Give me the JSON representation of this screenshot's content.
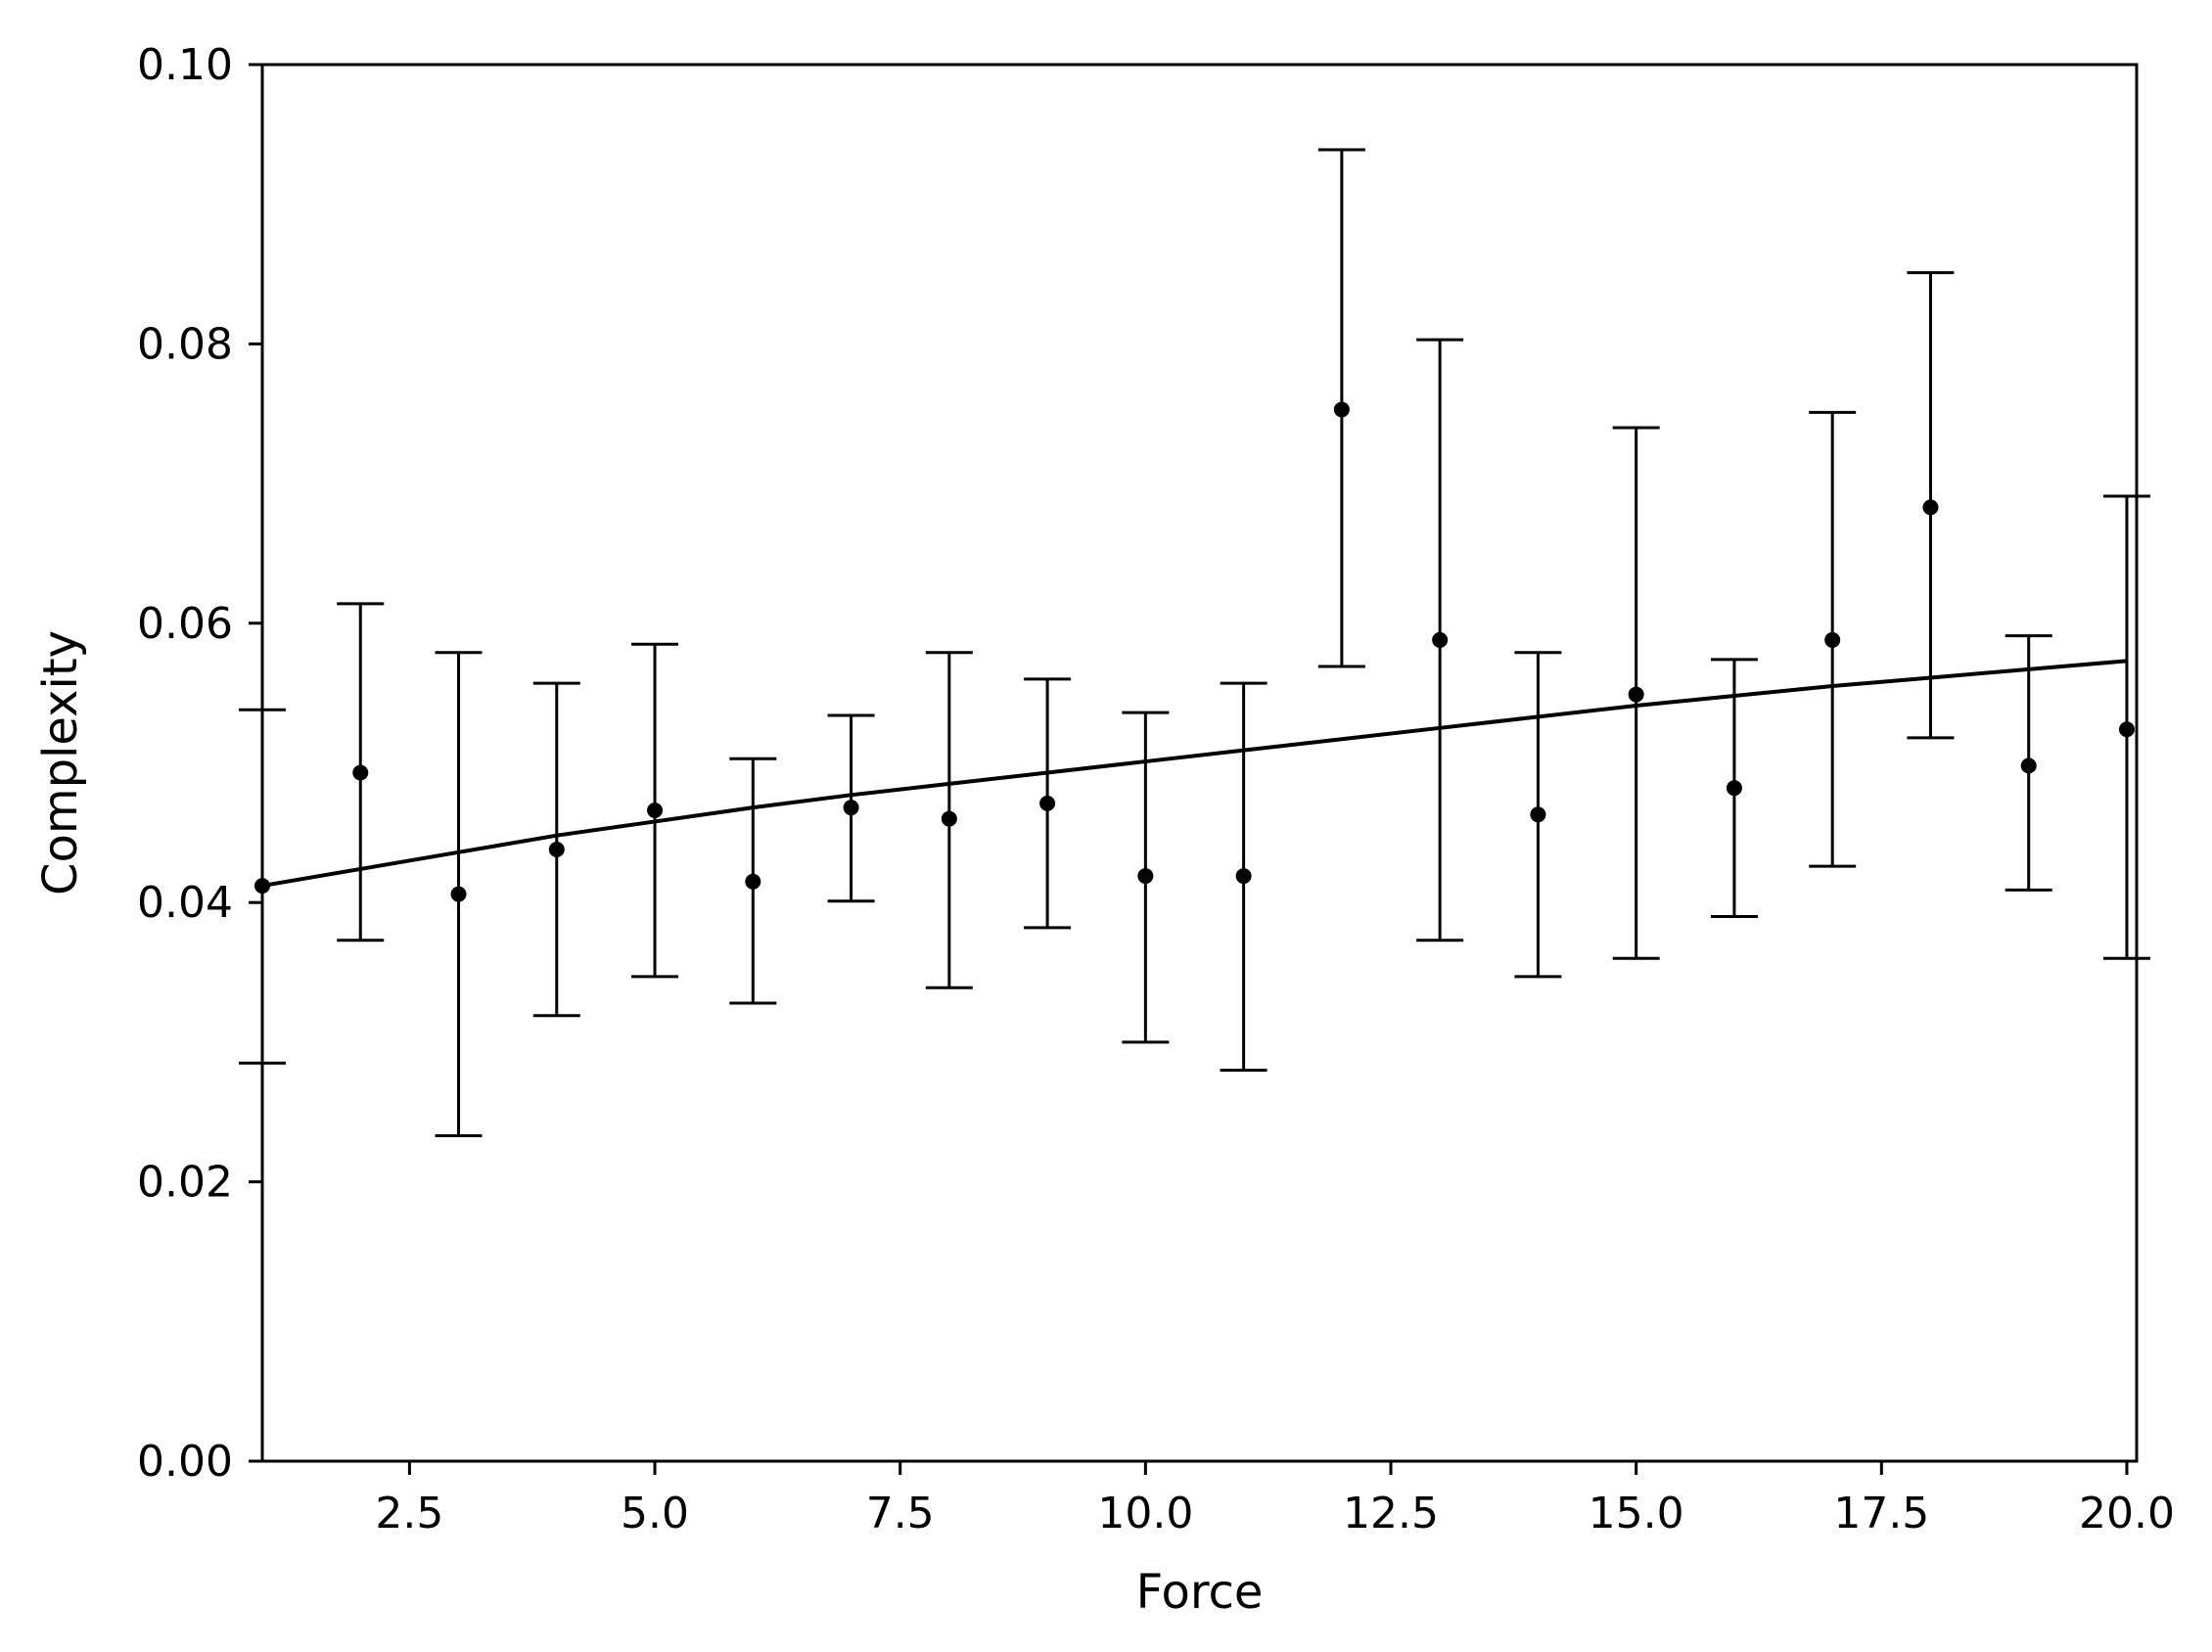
{
  "chart_data": {
    "type": "scatter",
    "title": "",
    "xlabel": "Force",
    "ylabel": "Complexity",
    "xlim": [
      1.0,
      20.1
    ],
    "ylim": [
      0.0,
      0.1
    ],
    "xticks": [
      "2.5",
      "5.0",
      "7.5",
      "10.0",
      "12.5",
      "15.0",
      "17.5",
      "20.0"
    ],
    "yticks": [
      "0.00",
      "0.02",
      "0.04",
      "0.06",
      "0.08",
      "0.10"
    ],
    "grid": false,
    "legend": "none",
    "color": "#000000",
    "points": [
      {
        "x": 1,
        "y": 0.0412,
        "ylow": 0.0285,
        "yhigh": 0.0538
      },
      {
        "x": 2,
        "y": 0.0493,
        "ylow": 0.0373,
        "yhigh": 0.0614
      },
      {
        "x": 3,
        "y": 0.0406,
        "ylow": 0.0233,
        "yhigh": 0.0579
      },
      {
        "x": 4,
        "y": 0.0438,
        "ylow": 0.0319,
        "yhigh": 0.0557
      },
      {
        "x": 5,
        "y": 0.0466,
        "ylow": 0.0347,
        "yhigh": 0.0585
      },
      {
        "x": 6,
        "y": 0.0415,
        "ylow": 0.0328,
        "yhigh": 0.0503
      },
      {
        "x": 7,
        "y": 0.0468,
        "ylow": 0.0401,
        "yhigh": 0.0534
      },
      {
        "x": 8,
        "y": 0.046,
        "ylow": 0.0339,
        "yhigh": 0.0579
      },
      {
        "x": 9,
        "y": 0.0471,
        "ylow": 0.0382,
        "yhigh": 0.056
      },
      {
        "x": 10,
        "y": 0.0419,
        "ylow": 0.03,
        "yhigh": 0.0536
      },
      {
        "x": 11,
        "y": 0.0419,
        "ylow": 0.028,
        "yhigh": 0.0557
      },
      {
        "x": 12,
        "y": 0.0753,
        "ylow": 0.0569,
        "yhigh": 0.0939
      },
      {
        "x": 13,
        "y": 0.0588,
        "ylow": 0.0373,
        "yhigh": 0.0803
      },
      {
        "x": 14,
        "y": 0.0463,
        "ylow": 0.0347,
        "yhigh": 0.0579
      },
      {
        "x": 15,
        "y": 0.0549,
        "ylow": 0.036,
        "yhigh": 0.074
      },
      {
        "x": 16,
        "y": 0.0482,
        "ylow": 0.039,
        "yhigh": 0.0574
      },
      {
        "x": 17,
        "y": 0.0588,
        "ylow": 0.0426,
        "yhigh": 0.0751
      },
      {
        "x": 18,
        "y": 0.0683,
        "ylow": 0.0518,
        "yhigh": 0.0851
      },
      {
        "x": 19,
        "y": 0.0498,
        "ylow": 0.0409,
        "yhigh": 0.0591
      },
      {
        "x": 20,
        "y": 0.0524,
        "ylow": 0.036,
        "yhigh": 0.0691
      }
    ],
    "fit_line": {
      "x": [
        1,
        2,
        3,
        4,
        5,
        6,
        7,
        8,
        9,
        10,
        11,
        12,
        13,
        14,
        15,
        16,
        17,
        18,
        19,
        20
      ],
      "y": [
        0.0412,
        0.0424,
        0.0436,
        0.0448,
        0.0458,
        0.0468,
        0.0477,
        0.0485,
        0.0493,
        0.0501,
        0.0509,
        0.0517,
        0.0525,
        0.0533,
        0.0541,
        0.0548,
        0.0555,
        0.0561,
        0.0567,
        0.0573
      ]
    }
  }
}
